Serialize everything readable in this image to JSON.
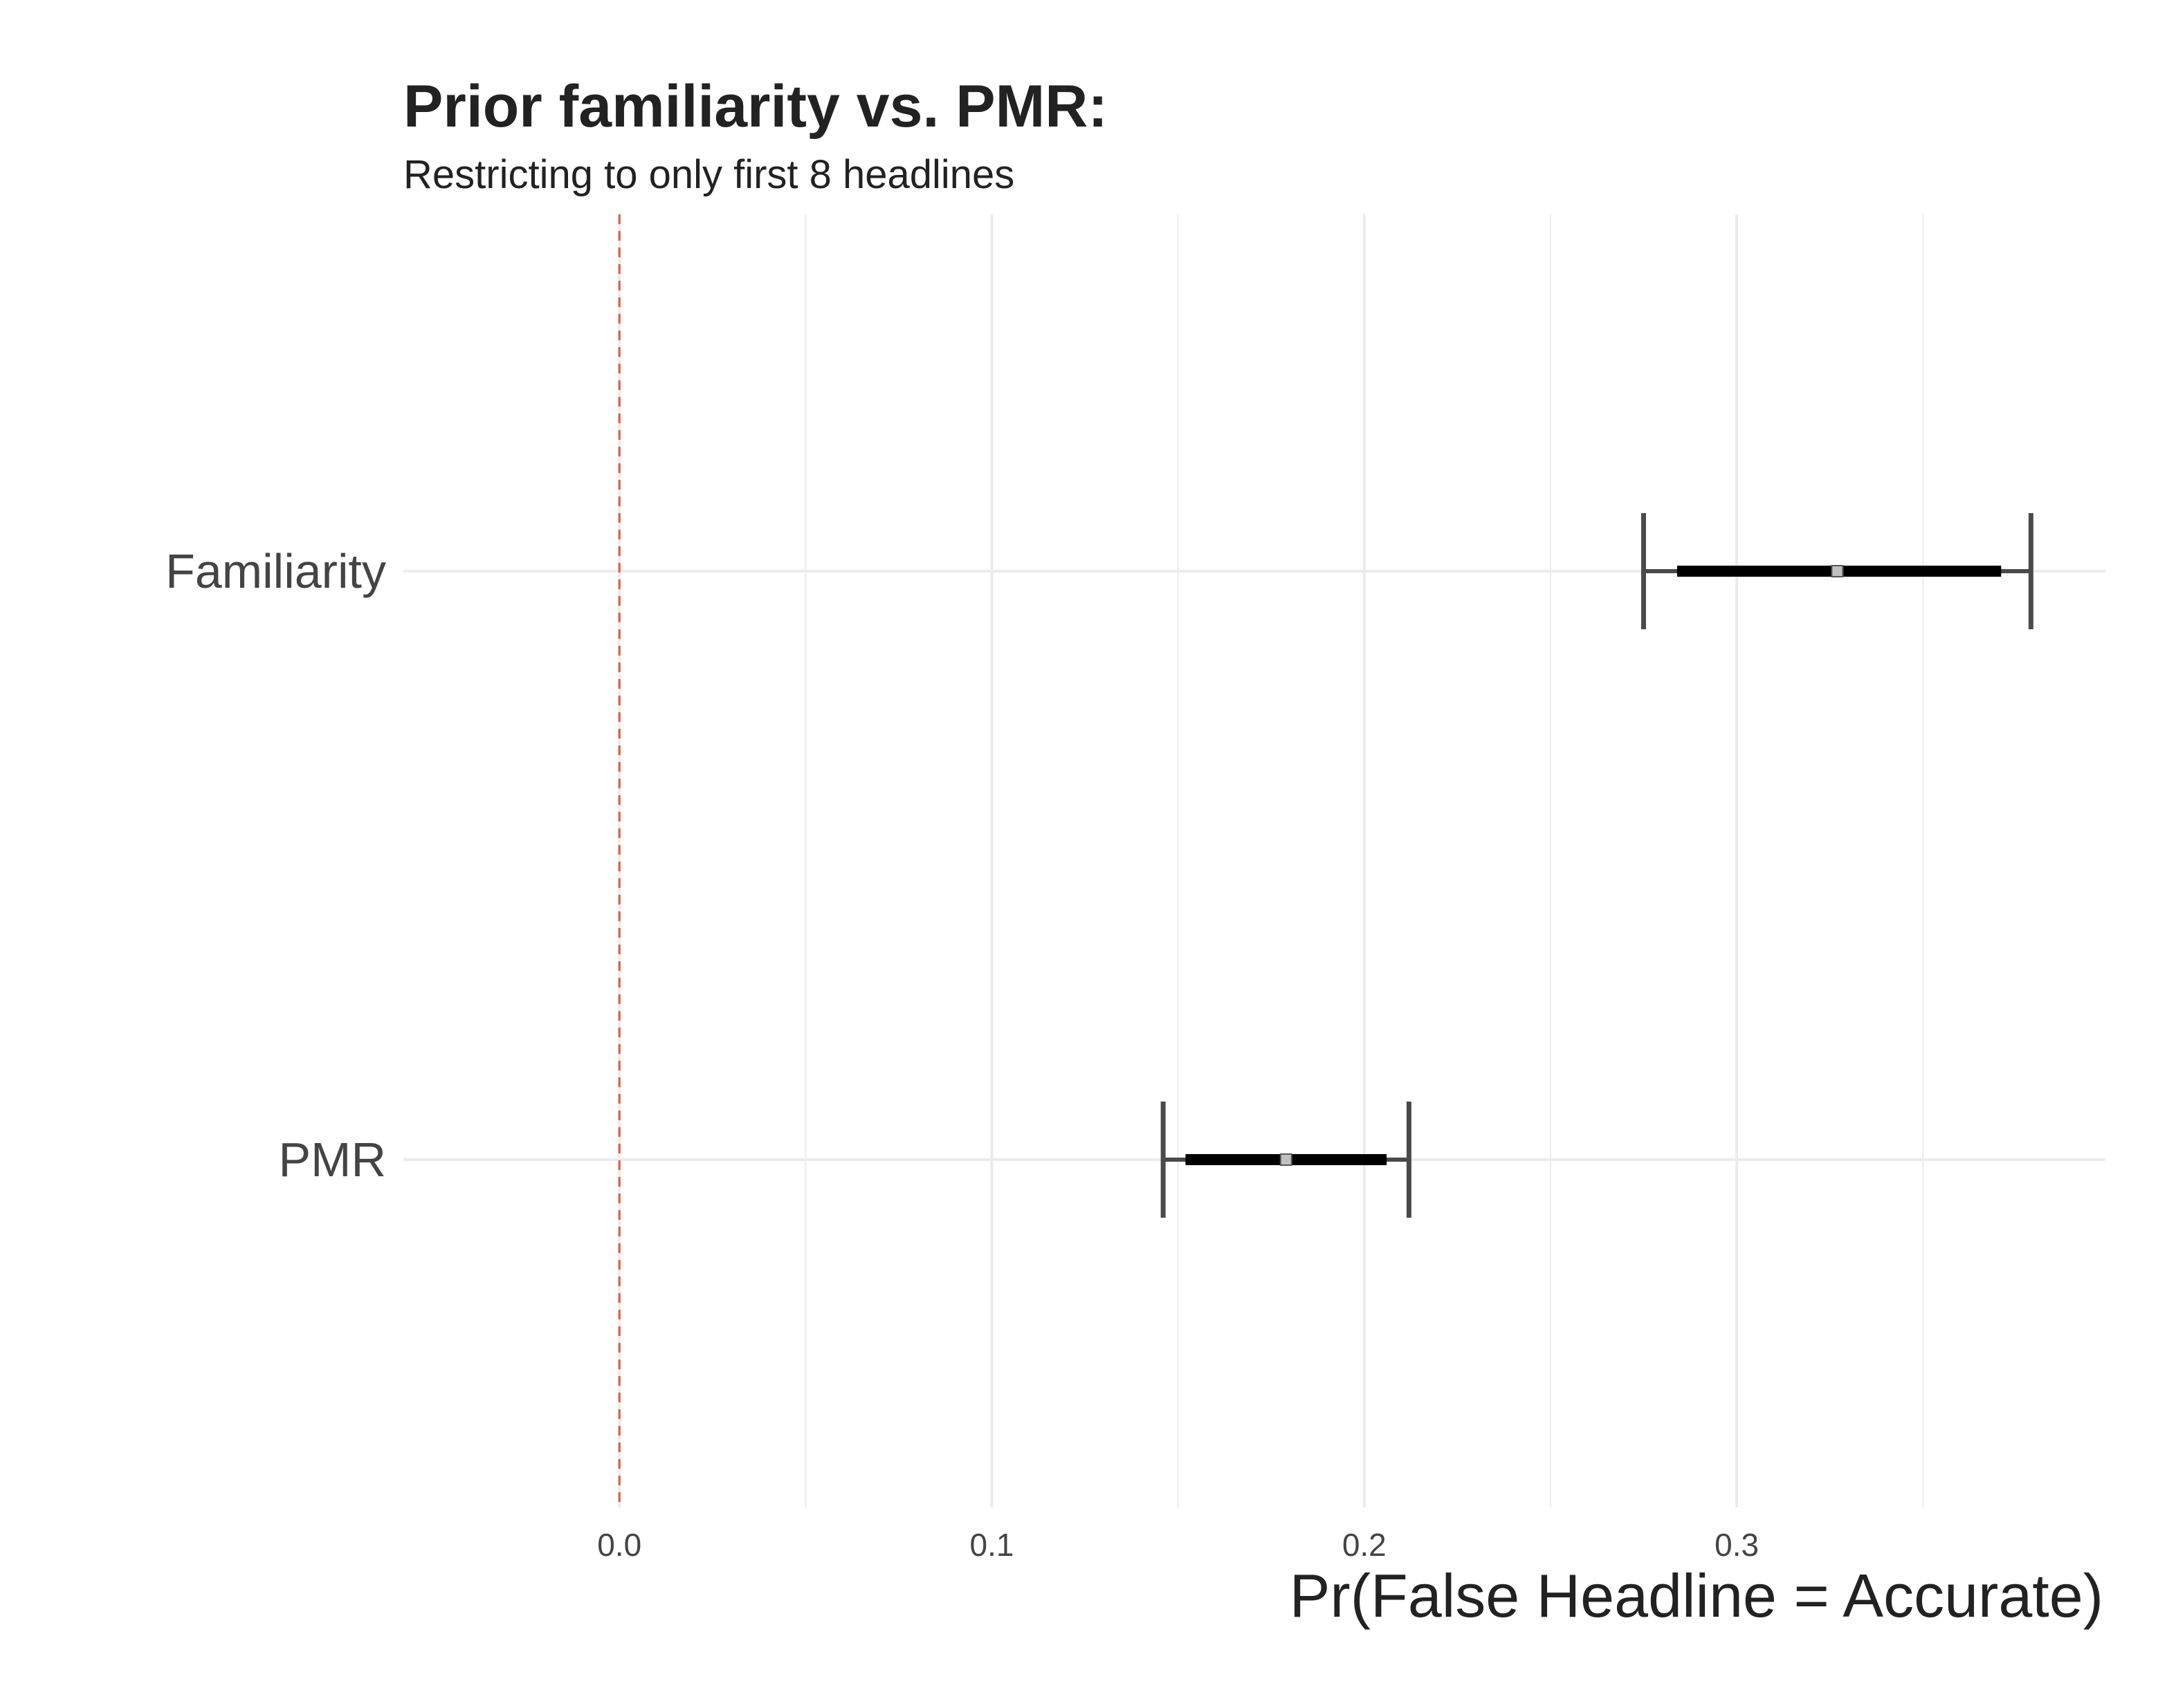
{
  "chart_data": {
    "type": "errorbar",
    "title": "Prior familiarity vs. PMR:",
    "subtitle": "Restricting to only first 8 headlines",
    "xlabel": "Pr(False Headline = Accurate)",
    "ylabel": "",
    "xlim": [
      -0.058,
      0.399
    ],
    "x_ticks": [
      0.0,
      0.1,
      0.2,
      0.3
    ],
    "x_tick_labels": [
      "0.0",
      "0.1",
      "0.2",
      "0.3"
    ],
    "x_minor_gridlines": [
      0.05,
      0.15,
      0.25,
      0.35
    ],
    "grid": true,
    "reference_line": {
      "x": 0,
      "color": "#e8553b",
      "style": "dashed"
    },
    "categories": [
      "Familiarity",
      "PMR"
    ],
    "series": [
      {
        "category": "Familiarity",
        "estimate": 0.327,
        "inner_low": 0.284,
        "inner_high": 0.371,
        "outer_low": 0.275,
        "outer_high": 0.379
      },
      {
        "category": "PMR",
        "estimate": 0.179,
        "inner_low": 0.152,
        "inner_high": 0.206,
        "outer_low": 0.146,
        "outer_high": 0.212
      }
    ],
    "colors": {
      "ci_outer": "#4a4a4a",
      "ci_inner": "#000000",
      "point_fill": "#c0c0c0",
      "grid": "#ebebeb"
    }
  }
}
